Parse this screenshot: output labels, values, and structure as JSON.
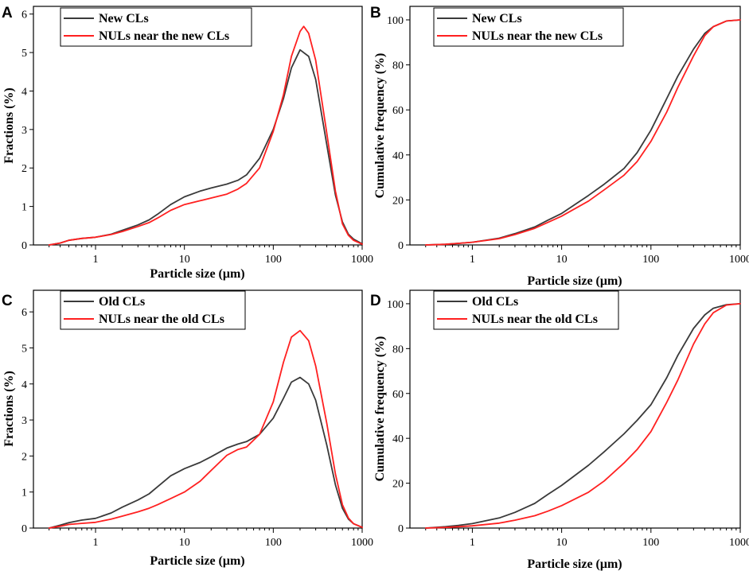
{
  "colors": {
    "series_a": "#3a3a3a",
    "series_b": "#ff2020",
    "axis": "#000000"
  },
  "chart_data": [
    {
      "panel": "A",
      "type": "line",
      "xscale": "log",
      "xlim": [
        0.2,
        1000
      ],
      "ylim": [
        0,
        6.2
      ],
      "xticks": [
        1,
        10,
        100,
        1000
      ],
      "xtick_labels": [
        "1",
        "10",
        "100",
        "1000"
      ],
      "yticks": [
        0,
        1,
        2,
        3,
        4,
        5,
        6
      ],
      "ytick_labels": [
        "0",
        "1",
        "2",
        "3",
        "4",
        "5",
        "6"
      ],
      "xlabel": "Particle size (μm)",
      "ylabel": "Fractions (%)",
      "legend_position": "top-left",
      "series": [
        {
          "name": "New CLs",
          "color_key": "series_a",
          "x": [
            0.3,
            0.4,
            0.5,
            0.7,
            1,
            1.5,
            2,
            3,
            4,
            5,
            7,
            10,
            15,
            20,
            30,
            40,
            50,
            70,
            100,
            130,
            160,
            200,
            250,
            300,
            400,
            500,
            600,
            700,
            800,
            1000
          ],
          "y": [
            0,
            0.05,
            0.12,
            0.17,
            0.2,
            0.28,
            0.38,
            0.52,
            0.65,
            0.8,
            1.05,
            1.25,
            1.4,
            1.48,
            1.58,
            1.68,
            1.82,
            2.25,
            3.0,
            3.8,
            4.6,
            5.07,
            4.9,
            4.3,
            2.6,
            1.3,
            0.6,
            0.28,
            0.15,
            0.03
          ]
        },
        {
          "name": "NULs near the new CLs",
          "color_key": "series_b",
          "x": [
            0.3,
            0.4,
            0.5,
            0.7,
            1,
            1.5,
            2,
            3,
            4,
            5,
            7,
            10,
            15,
            20,
            30,
            40,
            50,
            70,
            100,
            130,
            160,
            200,
            220,
            250,
            300,
            400,
            500,
            600,
            700,
            800,
            1000
          ],
          "y": [
            0,
            0.05,
            0.12,
            0.17,
            0.2,
            0.27,
            0.35,
            0.48,
            0.58,
            0.7,
            0.9,
            1.05,
            1.15,
            1.22,
            1.32,
            1.45,
            1.6,
            2.0,
            2.95,
            3.9,
            4.9,
            5.55,
            5.68,
            5.5,
            4.8,
            2.9,
            1.4,
            0.55,
            0.25,
            0.12,
            0.02
          ]
        }
      ]
    },
    {
      "panel": "B",
      "type": "line",
      "xscale": "log",
      "xlim": [
        0.2,
        1000
      ],
      "ylim": [
        0,
        106
      ],
      "xticks": [
        1,
        10,
        100,
        1000
      ],
      "xtick_labels": [
        "1",
        "10",
        "100",
        "1000"
      ],
      "yticks": [
        0,
        20,
        40,
        60,
        80,
        100
      ],
      "ytick_labels": [
        "0",
        "20",
        "40",
        "60",
        "80",
        "100"
      ],
      "xlabel": "Particle size (μm)",
      "ylabel": "Cumulative frequency (%)",
      "legend_position": "top-left",
      "series": [
        {
          "name": "New CLs",
          "color_key": "series_a",
          "x": [
            0.3,
            0.5,
            0.7,
            1,
            2,
            3,
            5,
            7,
            10,
            20,
            30,
            50,
            70,
            100,
            150,
            200,
            300,
            400,
            500,
            700,
            1000
          ],
          "y": [
            0,
            0.3,
            0.7,
            1.2,
            3,
            5,
            8,
            11,
            14,
            22,
            27,
            34,
            41,
            51,
            65,
            75,
            87,
            94,
            97,
            99.5,
            100
          ]
        },
        {
          "name": "NULs near the new CLs",
          "color_key": "series_b",
          "x": [
            0.3,
            0.5,
            0.7,
            1,
            2,
            3,
            5,
            7,
            10,
            20,
            30,
            50,
            70,
            100,
            150,
            200,
            300,
            400,
            500,
            700,
            1000
          ],
          "y": [
            0,
            0.3,
            0.7,
            1.2,
            2.8,
            4.6,
            7.4,
            10,
            12.8,
            19.5,
            24.5,
            31,
            37,
            46,
            59,
            70,
            84,
            93,
            97,
            99.5,
            100
          ]
        }
      ]
    },
    {
      "panel": "C",
      "type": "line",
      "xscale": "log",
      "xlim": [
        0.2,
        1000
      ],
      "ylim": [
        0,
        6.6
      ],
      "xticks": [
        1,
        10,
        100,
        1000
      ],
      "xtick_labels": [
        "1",
        "10",
        "100",
        "1000"
      ],
      "yticks": [
        0,
        1,
        2,
        3,
        4,
        5,
        6
      ],
      "ytick_labels": [
        "0",
        "1",
        "2",
        "3",
        "4",
        "5",
        "6"
      ],
      "xlabel": "Particle size (μm)",
      "ylabel": "Fractions (%)",
      "legend_position": "top-left",
      "series": [
        {
          "name": "Old CLs",
          "color_key": "series_a",
          "x": [
            0.3,
            0.4,
            0.5,
            0.7,
            1,
            1.5,
            2,
            3,
            4,
            5,
            7,
            10,
            15,
            20,
            30,
            40,
            50,
            70,
            100,
            130,
            160,
            200,
            250,
            300,
            400,
            500,
            600,
            700,
            800,
            1000
          ],
          "y": [
            0,
            0.08,
            0.15,
            0.22,
            0.27,
            0.42,
            0.58,
            0.78,
            0.95,
            1.15,
            1.45,
            1.65,
            1.82,
            1.98,
            2.22,
            2.33,
            2.4,
            2.6,
            3.05,
            3.6,
            4.05,
            4.18,
            4.0,
            3.55,
            2.3,
            1.2,
            0.55,
            0.25,
            0.12,
            0.02
          ]
        },
        {
          "name": "NULs near the old CLs",
          "color_key": "series_b",
          "x": [
            0.3,
            0.4,
            0.5,
            0.7,
            1,
            1.5,
            2,
            3,
            4,
            5,
            7,
            10,
            15,
            20,
            30,
            40,
            50,
            70,
            100,
            130,
            160,
            200,
            250,
            300,
            400,
            500,
            600,
            700,
            800,
            1000
          ],
          "y": [
            0,
            0.05,
            0.1,
            0.13,
            0.16,
            0.25,
            0.33,
            0.45,
            0.55,
            0.65,
            0.82,
            1.0,
            1.3,
            1.6,
            2.02,
            2.18,
            2.25,
            2.6,
            3.5,
            4.6,
            5.3,
            5.48,
            5.2,
            4.5,
            2.9,
            1.5,
            0.65,
            0.28,
            0.12,
            0.02
          ]
        }
      ]
    },
    {
      "panel": "D",
      "type": "line",
      "xscale": "log",
      "xlim": [
        0.2,
        1000
      ],
      "ylim": [
        0,
        106
      ],
      "xticks": [
        1,
        10,
        100,
        1000
      ],
      "xtick_labels": [
        "1",
        "10",
        "100",
        "1000"
      ],
      "yticks": [
        0,
        20,
        40,
        60,
        80,
        100
      ],
      "ytick_labels": [
        "0",
        "20",
        "40",
        "60",
        "80",
        "100"
      ],
      "xlabel": "Particle size (μm)",
      "ylabel": "Cumulative frequency (%)",
      "legend_position": "top-left",
      "series": [
        {
          "name": "Old CLs",
          "color_key": "series_a",
          "x": [
            0.3,
            0.5,
            0.7,
            1,
            2,
            3,
            5,
            7,
            10,
            20,
            30,
            50,
            70,
            100,
            150,
            200,
            300,
            400,
            500,
            700,
            1000
          ],
          "y": [
            0,
            0.6,
            1.2,
            2,
            4.5,
            7,
            11,
            15,
            19,
            28,
            34,
            42,
            48,
            55,
            67,
            77,
            89,
            95,
            98,
            99.6,
            100
          ]
        },
        {
          "name": "NULs near the old CLs",
          "color_key": "series_b",
          "x": [
            0.3,
            0.5,
            0.7,
            1,
            2,
            3,
            5,
            7,
            10,
            20,
            30,
            50,
            70,
            100,
            150,
            200,
            300,
            400,
            500,
            700,
            1000
          ],
          "y": [
            0,
            0.3,
            0.6,
            1,
            2.2,
            3.5,
            5.5,
            7.5,
            10,
            16,
            21,
            29,
            35,
            43,
            56,
            66,
            82,
            91,
            96,
            99.4,
            100
          ]
        }
      ]
    }
  ]
}
